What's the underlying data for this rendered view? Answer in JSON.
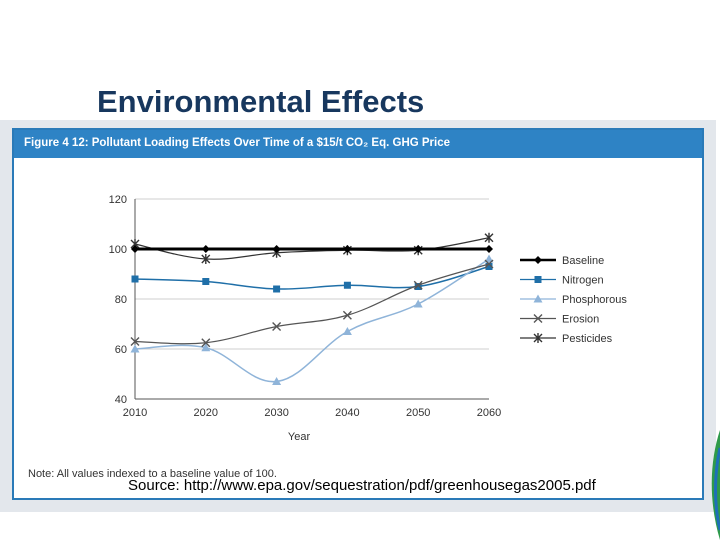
{
  "slide": {
    "title": "Environmental Effects",
    "source": "Source:  http://www.epa.gov/sequestration/pdf/greenhousegas2005.pdf"
  },
  "figure": {
    "title": "Figure 4 12: Pollutant Loading Effects Over Time of a $15/t CO₂ Eq. GHG Price",
    "note": "Note: All values indexed to a baseline value of 100."
  },
  "chart_data": {
    "type": "line",
    "title": "Figure 4 12: Pollutant Loading Effects Over Time of a $15/t CO₂ Eq. GHG Price",
    "xlabel": "Year",
    "ylabel": "",
    "x": [
      2010,
      2020,
      2030,
      2040,
      2050,
      2060
    ],
    "ylim": [
      40,
      120
    ],
    "yticks": [
      40,
      60,
      80,
      100,
      120
    ],
    "grid": true,
    "legend_position": "right",
    "series": [
      {
        "name": "Baseline",
        "values": [
          100,
          100,
          100,
          100,
          100,
          100
        ],
        "color": "#000000",
        "marker": "diamond",
        "stroke_width": 3
      },
      {
        "name": "Nitrogen",
        "values": [
          88,
          87,
          84,
          85.5,
          85,
          93
        ],
        "color": "#1f6fa8",
        "marker": "square",
        "stroke_width": 1.5
      },
      {
        "name": "Phosphorous",
        "values": [
          60,
          60.5,
          47,
          67,
          78,
          96
        ],
        "color": "#8fb4d9",
        "marker": "triangle",
        "stroke_width": 1.5
      },
      {
        "name": "Erosion",
        "values": [
          63,
          62.5,
          69,
          73.5,
          85.5,
          94
        ],
        "color": "#555555",
        "marker": "x",
        "stroke_width": 1.2
      },
      {
        "name": "Pesticides",
        "values": [
          102,
          96,
          98.5,
          99.5,
          99.5,
          104.5
        ],
        "color": "#333333",
        "marker": "asterisk",
        "stroke_width": 1.2
      }
    ]
  }
}
